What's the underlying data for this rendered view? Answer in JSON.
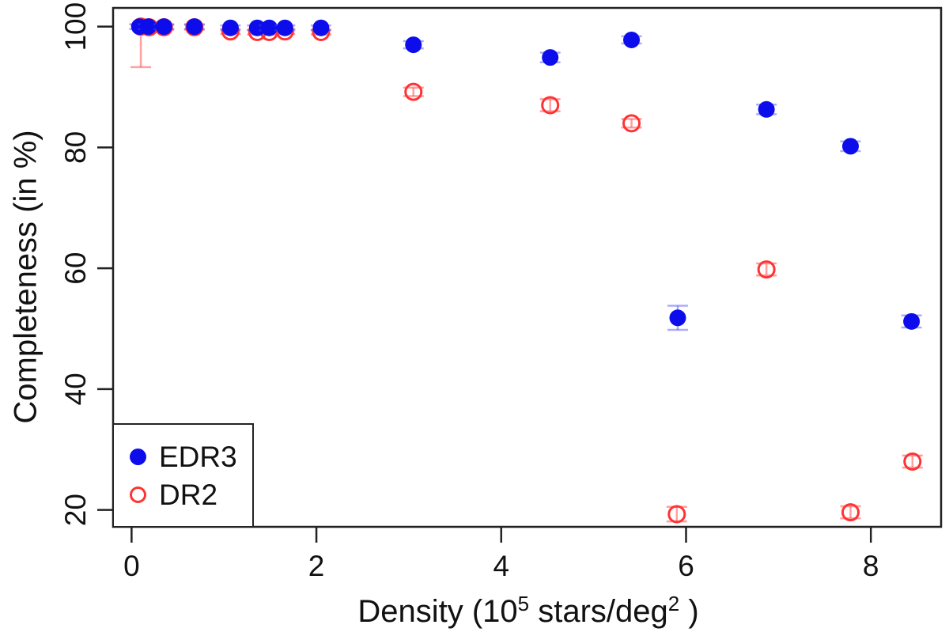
{
  "colors": {
    "axis": "#222222",
    "text": "#111111",
    "background": "#ffffff",
    "edr3_blue": "#0d0deb",
    "dr2_red": "#ff3333",
    "edr3_errorbar": "rgba(70,70,240,0.45)",
    "dr2_errorbar": "rgba(255,80,80,0.55)"
  },
  "chart_data": {
    "type": "scatter",
    "title": "",
    "xlabel": "Density (10^5 stars/deg^2 )",
    "xlabel_parts": [
      "Density (10",
      "5",
      " stars/deg",
      "2",
      " )"
    ],
    "ylabel": "Completeness (in %)",
    "xlim": [
      -0.2,
      8.76
    ],
    "ylim": [
      17.2,
      103.1
    ],
    "x_ticks": [
      0,
      2,
      4,
      6,
      8
    ],
    "y_ticks": [
      20,
      40,
      60,
      80,
      100
    ],
    "grid": false,
    "legend": {
      "position": "bottom-left",
      "items": [
        {
          "label": "EDR3",
          "marker": "filled-circle",
          "color": "#0d0deb"
        },
        {
          "label": "DR2",
          "marker": "open-circle",
          "color": "#ff3333"
        }
      ]
    },
    "series": [
      {
        "name": "DR2",
        "marker": "open-circle",
        "color": "#ff3333",
        "errorbar_color": "rgba(255,80,80,0.55)",
        "points": [
          {
            "x": 0.1,
            "y": 100.0,
            "err_up": 0.3,
            "err_down": 6.7
          },
          {
            "x": 0.19,
            "y": 99.9,
            "err": 0.4
          },
          {
            "x": 0.35,
            "y": 99.9,
            "err": 0.4
          },
          {
            "x": 0.68,
            "y": 99.9,
            "err": 0.4
          },
          {
            "x": 1.07,
            "y": 99.2,
            "err": 0.4
          },
          {
            "x": 1.36,
            "y": 99.1,
            "err": 0.4
          },
          {
            "x": 1.49,
            "y": 99.1,
            "err": 0.4
          },
          {
            "x": 1.66,
            "y": 99.2,
            "err": 0.4
          },
          {
            "x": 2.05,
            "y": 99.1,
            "err": 0.4
          },
          {
            "x": 3.05,
            "y": 89.2,
            "err": 0.7
          },
          {
            "x": 4.53,
            "y": 87.0,
            "err": 1.0
          },
          {
            "x": 5.41,
            "y": 84.0,
            "err": 0.7
          },
          {
            "x": 5.9,
            "y": 19.3,
            "err": 1.2
          },
          {
            "x": 6.87,
            "y": 59.8,
            "err": 1.0
          },
          {
            "x": 7.78,
            "y": 19.6,
            "err": 1.0
          },
          {
            "x": 8.45,
            "y": 28.0,
            "err": 1.0
          }
        ]
      },
      {
        "name": "EDR3",
        "marker": "filled-circle",
        "color": "#0d0deb",
        "errorbar_color": "rgba(70,70,240,0.45)",
        "points": [
          {
            "x": 0.085,
            "y": 100.0,
            "err": 0.4
          },
          {
            "x": 0.18,
            "y": 100.0,
            "err": 0.4
          },
          {
            "x": 0.35,
            "y": 100.0,
            "err": 0.4
          },
          {
            "x": 0.68,
            "y": 100.0,
            "err": 0.4
          },
          {
            "x": 1.07,
            "y": 99.8,
            "err": 0.4
          },
          {
            "x": 1.36,
            "y": 99.8,
            "err": 0.4
          },
          {
            "x": 1.49,
            "y": 99.8,
            "err": 0.4
          },
          {
            "x": 1.66,
            "y": 99.8,
            "err": 0.4
          },
          {
            "x": 2.05,
            "y": 99.8,
            "err": 0.4
          },
          {
            "x": 3.05,
            "y": 97.0,
            "err": 0.6
          },
          {
            "x": 4.53,
            "y": 94.9,
            "err": 0.8
          },
          {
            "x": 5.41,
            "y": 97.8,
            "err": 0.6
          },
          {
            "x": 5.91,
            "y": 51.8,
            "err": 2.0
          },
          {
            "x": 6.87,
            "y": 86.3,
            "err": 0.8
          },
          {
            "x": 7.78,
            "y": 80.2,
            "err": 0.8
          },
          {
            "x": 8.44,
            "y": 51.2,
            "err": 1.0
          }
        ]
      }
    ]
  }
}
